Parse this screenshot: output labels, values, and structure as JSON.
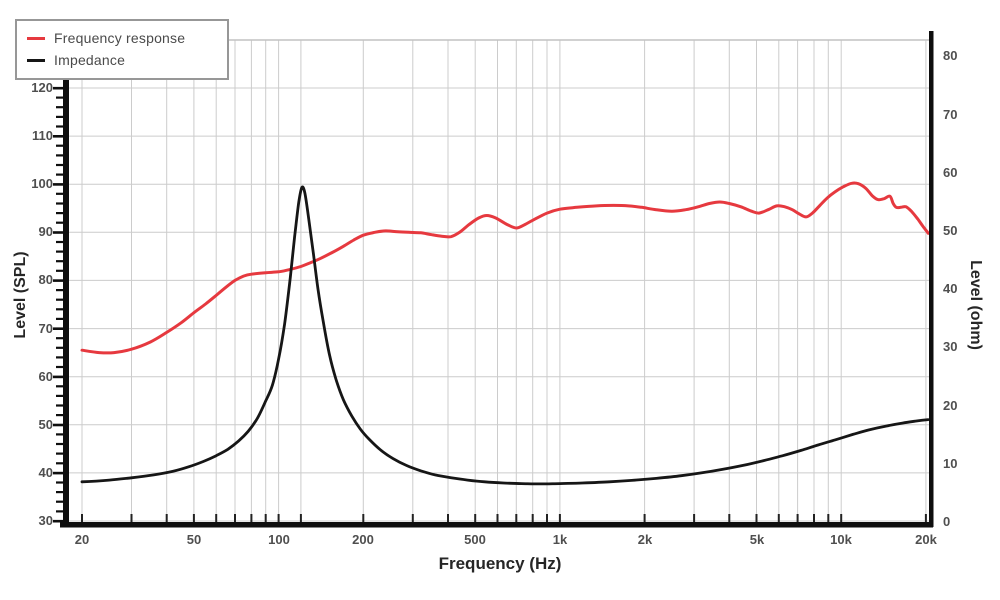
{
  "chart_data": {
    "type": "line",
    "title": "",
    "xlabel": "Frequency (Hz)",
    "ylabel_left": "Level (SPL)",
    "ylabel_right": "Level (ohm)",
    "x_scale": "log",
    "x_range_hz": [
      20,
      20400
    ],
    "grid": true,
    "legend_position": "top-left",
    "y_left_axis": {
      "min": 30,
      "max": 131,
      "tick_step": 10,
      "minor_step": 2,
      "ticks": [
        30,
        40,
        50,
        60,
        70,
        80,
        90,
        100,
        110,
        120
      ]
    },
    "y_right_axis": {
      "min": 0,
      "max": 83,
      "tick_step": 10,
      "minor_step": 2,
      "ticks": [
        0,
        10,
        20,
        30,
        40,
        50,
        60,
        70,
        80
      ]
    },
    "x_ticks": [
      {
        "label": "20",
        "hz": 20
      },
      {
        "label": "50",
        "hz": 50
      },
      {
        "label": "100",
        "hz": 100
      },
      {
        "label": "200",
        "hz": 200
      },
      {
        "label": "500",
        "hz": 500
      },
      {
        "label": "1k",
        "hz": 1000
      },
      {
        "label": "2k",
        "hz": 2000
      },
      {
        "label": "5k",
        "hz": 5000
      },
      {
        "label": "10k",
        "hz": 10000
      },
      {
        "label": "20k",
        "hz": 20000
      }
    ],
    "x_gridlines_hz": [
      20,
      30,
      40,
      50,
      60,
      70,
      80,
      90,
      100,
      120,
      200,
      300,
      400,
      500,
      600,
      700,
      800,
      900,
      1000,
      2000,
      3000,
      4000,
      5000,
      6000,
      7000,
      8000,
      9000,
      10000,
      20000
    ],
    "series": [
      {
        "name": "Frequency response",
        "color": "#e6393f",
        "axis": "left",
        "unit": "dB SPL",
        "points": [
          [
            20,
            65.5
          ],
          [
            23,
            65.0
          ],
          [
            26,
            65.0
          ],
          [
            30,
            65.7
          ],
          [
            35,
            67.2
          ],
          [
            40,
            69.2
          ],
          [
            45,
            71.2
          ],
          [
            50,
            73.3
          ],
          [
            55,
            75.1
          ],
          [
            60,
            76.9
          ],
          [
            65,
            78.6
          ],
          [
            70,
            80.0
          ],
          [
            75,
            80.9
          ],
          [
            80,
            81.3
          ],
          [
            90,
            81.6
          ],
          [
            100,
            81.8
          ],
          [
            110,
            82.3
          ],
          [
            120,
            82.9
          ],
          [
            130,
            83.7
          ],
          [
            140,
            84.5
          ],
          [
            155,
            85.8
          ],
          [
            170,
            87.1
          ],
          [
            185,
            88.4
          ],
          [
            200,
            89.4
          ],
          [
            220,
            90.0
          ],
          [
            240,
            90.3
          ],
          [
            265,
            90.1
          ],
          [
            290,
            90.0
          ],
          [
            320,
            89.9
          ],
          [
            350,
            89.5
          ],
          [
            380,
            89.2
          ],
          [
            410,
            89.1
          ],
          [
            440,
            90.0
          ],
          [
            475,
            91.6
          ],
          [
            515,
            93.0
          ],
          [
            550,
            93.5
          ],
          [
            590,
            93.0
          ],
          [
            650,
            91.6
          ],
          [
            700,
            90.9
          ],
          [
            750,
            91.6
          ],
          [
            800,
            92.5
          ],
          [
            900,
            94.0
          ],
          [
            1000,
            94.8
          ],
          [
            1150,
            95.2
          ],
          [
            1350,
            95.5
          ],
          [
            1550,
            95.6
          ],
          [
            1750,
            95.5
          ],
          [
            1950,
            95.2
          ],
          [
            2200,
            94.7
          ],
          [
            2500,
            94.4
          ],
          [
            2800,
            94.7
          ],
          [
            3100,
            95.3
          ],
          [
            3400,
            96.0
          ],
          [
            3700,
            96.3
          ],
          [
            4000,
            96.0
          ],
          [
            4400,
            95.3
          ],
          [
            4800,
            94.4
          ],
          [
            5100,
            94.0
          ],
          [
            5500,
            94.7
          ],
          [
            5900,
            95.5
          ],
          [
            6300,
            95.3
          ],
          [
            6700,
            94.7
          ],
          [
            7100,
            93.8
          ],
          [
            7500,
            93.2
          ],
          [
            7900,
            94.0
          ],
          [
            8400,
            95.6
          ],
          [
            8900,
            97.1
          ],
          [
            9500,
            98.4
          ],
          [
            10200,
            99.5
          ],
          [
            10900,
            100.2
          ],
          [
            11500,
            100.1
          ],
          [
            12200,
            99.2
          ],
          [
            12900,
            97.6
          ],
          [
            13500,
            96.8
          ],
          [
            14200,
            97.0
          ],
          [
            14900,
            97.5
          ],
          [
            15300,
            96.0
          ],
          [
            15700,
            95.2
          ],
          [
            16300,
            95.2
          ],
          [
            17000,
            95.3
          ],
          [
            17800,
            94.3
          ],
          [
            18700,
            92.8
          ],
          [
            19500,
            91.3
          ],
          [
            20400,
            89.8
          ]
        ]
      },
      {
        "name": "Impedance",
        "color": "#161616",
        "axis": "right",
        "unit": "ohm",
        "points": [
          [
            20,
            6.9
          ],
          [
            25,
            7.2
          ],
          [
            30,
            7.6
          ],
          [
            36,
            8.1
          ],
          [
            42,
            8.7
          ],
          [
            48,
            9.5
          ],
          [
            54,
            10.4
          ],
          [
            60,
            11.4
          ],
          [
            66,
            12.5
          ],
          [
            72,
            13.9
          ],
          [
            78,
            15.6
          ],
          [
            84,
            17.8
          ],
          [
            90,
            20.8
          ],
          [
            95,
            23.5
          ],
          [
            100,
            28.0
          ],
          [
            105,
            34.0
          ],
          [
            110,
            42.0
          ],
          [
            114,
            49.0
          ],
          [
            118,
            55.0
          ],
          [
            121,
            57.5
          ],
          [
            124,
            56.5
          ],
          [
            128,
            52.0
          ],
          [
            133,
            46.0
          ],
          [
            138,
            40.0
          ],
          [
            144,
            34.5
          ],
          [
            152,
            28.5
          ],
          [
            160,
            24.5
          ],
          [
            170,
            21.0
          ],
          [
            182,
            18.2
          ],
          [
            195,
            16.0
          ],
          [
            210,
            14.2
          ],
          [
            230,
            12.4
          ],
          [
            255,
            10.9
          ],
          [
            285,
            9.7
          ],
          [
            320,
            8.8
          ],
          [
            360,
            8.1
          ],
          [
            410,
            7.6
          ],
          [
            470,
            7.2
          ],
          [
            540,
            6.9
          ],
          [
            630,
            6.7
          ],
          [
            730,
            6.6
          ],
          [
            850,
            6.55
          ],
          [
            1000,
            6.6
          ],
          [
            1200,
            6.7
          ],
          [
            1500,
            6.9
          ],
          [
            1800,
            7.15
          ],
          [
            2200,
            7.5
          ],
          [
            2700,
            7.95
          ],
          [
            3200,
            8.45
          ],
          [
            3800,
            9.05
          ],
          [
            4500,
            9.75
          ],
          [
            5300,
            10.55
          ],
          [
            6200,
            11.4
          ],
          [
            7200,
            12.3
          ],
          [
            8300,
            13.25
          ],
          [
            9500,
            14.1
          ],
          [
            11000,
            15.05
          ],
          [
            12500,
            15.8
          ],
          [
            14500,
            16.5
          ],
          [
            16500,
            17.0
          ],
          [
            18500,
            17.35
          ],
          [
            20400,
            17.6
          ]
        ]
      }
    ]
  },
  "colors": {
    "background": "#ffffff",
    "grid": "#cccccc",
    "top_frame": "#c2c2c2",
    "axis_bar": "#0e0e0e",
    "tick_label": "#4f4f4f",
    "axis_title": "#262626",
    "legend_border": "#979797",
    "legend_text": "#4a4a4a"
  }
}
